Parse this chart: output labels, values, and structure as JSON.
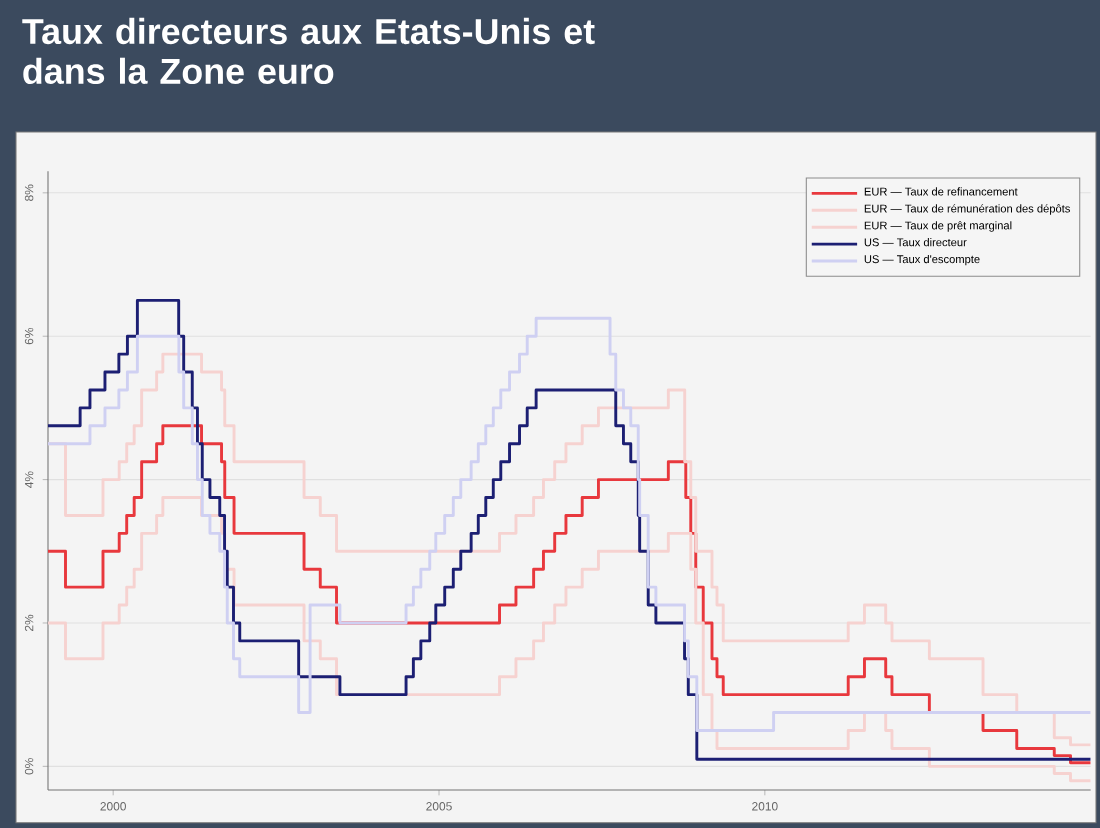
{
  "chart_data": {
    "type": "step",
    "title": "Taux directeurs aux Etats-Unis et dans la Zone euro",
    "xlim": [
      "1999-01-01",
      "2015-01-01"
    ],
    "xticks": [
      "2000",
      "2005",
      "2010"
    ],
    "ylim": [
      -0.33,
      8.3
    ],
    "yticks": [
      {
        "value": 0,
        "label": "0%"
      },
      {
        "value": 2,
        "label": "2%"
      },
      {
        "value": 4,
        "label": "4%"
      },
      {
        "value": 6,
        "label": "6%"
      },
      {
        "value": 8,
        "label": "8%"
      }
    ],
    "grid": "y",
    "legend": "top right",
    "series": [
      {
        "name": "EUR — Taux de refinancement",
        "color": "#e8383d",
        "x": [
          "1999-01-01",
          "1999-04-09",
          "1999-11-05",
          "2000-02-04",
          "2000-03-17",
          "2000-04-28",
          "2000-06-09",
          "2000-09-01",
          "2000-10-06",
          "2001-05-11",
          "2001-08-31",
          "2001-09-18",
          "2001-11-09",
          "2002-12-06",
          "2003-03-07",
          "2003-06-06",
          "2005-12-06",
          "2006-03-08",
          "2006-06-15",
          "2006-08-09",
          "2006-10-11",
          "2006-12-13",
          "2007-03-14",
          "2007-06-13",
          "2008-07-09",
          "2008-10-15",
          "2008-11-12",
          "2008-12-10",
          "2009-01-21",
          "2009-03-11",
          "2009-04-08",
          "2009-05-13",
          "2011-04-13",
          "2011-07-13",
          "2011-11-09",
          "2011-12-14",
          "2012-07-11",
          "2013-05-08",
          "2013-11-13",
          "2014-06-11",
          "2014-09-10",
          "2015-01-01"
        ],
        "values": [
          3.0,
          2.5,
          3.0,
          3.25,
          3.5,
          3.75,
          4.25,
          4.5,
          4.75,
          4.5,
          4.25,
          3.75,
          3.25,
          2.75,
          2.5,
          2.0,
          2.25,
          2.5,
          2.75,
          3.0,
          3.25,
          3.5,
          3.75,
          4.0,
          4.25,
          3.75,
          3.25,
          2.5,
          2.0,
          1.5,
          1.25,
          1.0,
          1.25,
          1.5,
          1.25,
          1.0,
          0.75,
          0.5,
          0.25,
          0.15,
          0.05,
          0.05
        ]
      },
      {
        "name": "EUR — Taux de rémunération des dépôts",
        "color": "#f6d2d0",
        "x": [
          "1999-01-01",
          "1999-04-09",
          "1999-11-05",
          "2000-02-04",
          "2000-03-17",
          "2000-04-28",
          "2000-06-09",
          "2000-09-01",
          "2000-10-06",
          "2001-05-11",
          "2001-08-31",
          "2001-09-18",
          "2001-11-09",
          "2002-12-06",
          "2003-03-07",
          "2003-06-06",
          "2005-12-06",
          "2006-03-08",
          "2006-06-15",
          "2006-08-09",
          "2006-10-11",
          "2006-12-13",
          "2007-03-14",
          "2007-06-13",
          "2008-07-09",
          "2008-11-12",
          "2008-12-10",
          "2009-01-21",
          "2009-03-11",
          "2009-04-08",
          "2011-04-13",
          "2011-07-13",
          "2011-11-09",
          "2011-12-14",
          "2012-07-11",
          "2014-06-11",
          "2014-09-10",
          "2015-01-01"
        ],
        "values": [
          2.0,
          1.5,
          2.0,
          2.25,
          2.5,
          2.75,
          3.25,
          3.5,
          3.75,
          3.5,
          3.25,
          2.75,
          2.25,
          1.75,
          1.5,
          1.0,
          1.25,
          1.5,
          1.75,
          2.0,
          2.25,
          2.5,
          2.75,
          3.0,
          3.25,
          2.75,
          2.0,
          1.0,
          0.5,
          0.25,
          0.5,
          0.75,
          0.5,
          0.25,
          0.0,
          -0.1,
          -0.2,
          -0.2
        ]
      },
      {
        "name": "EUR — Taux de  prêt marginal",
        "color": "#f6d2d0",
        "x": [
          "1999-01-01",
          "1999-04-09",
          "1999-11-05",
          "2000-02-04",
          "2000-03-17",
          "2000-04-28",
          "2000-06-09",
          "2000-09-01",
          "2000-10-06",
          "2001-05-11",
          "2001-08-31",
          "2001-09-18",
          "2001-11-09",
          "2002-12-06",
          "2003-03-07",
          "2003-06-06",
          "2005-12-06",
          "2006-03-08",
          "2006-06-15",
          "2006-08-09",
          "2006-10-11",
          "2006-12-13",
          "2007-03-14",
          "2007-06-13",
          "2008-07-09",
          "2008-10-09",
          "2008-11-12",
          "2008-12-10",
          "2009-03-11",
          "2009-04-08",
          "2009-05-13",
          "2011-04-13",
          "2011-07-13",
          "2011-11-09",
          "2011-12-14",
          "2012-07-11",
          "2013-05-08",
          "2013-11-13",
          "2014-06-11",
          "2014-09-10",
          "2015-01-01"
        ],
        "values": [
          4.5,
          3.5,
          4.0,
          4.25,
          4.5,
          4.75,
          5.25,
          5.5,
          5.75,
          5.5,
          5.25,
          4.75,
          4.25,
          3.75,
          3.5,
          3.0,
          3.25,
          3.5,
          3.75,
          4.0,
          4.25,
          4.5,
          4.75,
          5.0,
          5.25,
          4.25,
          3.75,
          3.0,
          2.5,
          2.25,
          1.75,
          2.0,
          2.25,
          2.0,
          1.75,
          1.5,
          1.0,
          0.75,
          0.4,
          0.3,
          0.3
        ]
      },
      {
        "name": "US — Taux directeur",
        "color": "#1c1f73",
        "x": [
          "1999-01-01",
          "1999-06-30",
          "1999-08-24",
          "1999-11-16",
          "2000-02-02",
          "2000-03-21",
          "2000-05-16",
          "2001-01-03",
          "2001-01-31",
          "2001-03-20",
          "2001-04-18",
          "2001-05-15",
          "2001-06-27",
          "2001-08-21",
          "2001-09-17",
          "2001-10-02",
          "2001-11-06",
          "2001-12-11",
          "2002-11-06",
          "2003-06-25",
          "2004-06-30",
          "2004-08-10",
          "2004-09-21",
          "2004-11-10",
          "2004-12-14",
          "2005-02-02",
          "2005-03-22",
          "2005-05-03",
          "2005-06-30",
          "2005-08-09",
          "2005-09-20",
          "2005-11-01",
          "2005-12-13",
          "2006-01-31",
          "2006-03-28",
          "2006-05-10",
          "2006-06-29",
          "2007-09-18",
          "2007-10-31",
          "2007-12-11",
          "2008-01-22",
          "2008-01-30",
          "2008-03-18",
          "2008-04-30",
          "2008-10-08",
          "2008-10-29",
          "2008-12-16",
          "2015-01-01"
        ],
        "values": [
          4.75,
          5.0,
          5.25,
          5.5,
          5.75,
          6.0,
          6.5,
          6.0,
          5.5,
          5.0,
          4.5,
          4.0,
          3.75,
          3.5,
          3.0,
          2.5,
          2.0,
          1.75,
          1.25,
          1.0,
          1.25,
          1.5,
          1.75,
          2.0,
          2.25,
          2.5,
          2.75,
          3.0,
          3.25,
          3.5,
          3.75,
          4.0,
          4.25,
          4.5,
          4.75,
          5.0,
          5.25,
          4.75,
          4.5,
          4.25,
          3.5,
          3.0,
          2.25,
          2.0,
          1.5,
          1.0,
          0.1,
          0.1
        ]
      },
      {
        "name": "US — Taux d'escompte",
        "color": "#cfd0f2",
        "x": [
          "1999-01-01",
          "1999-08-24",
          "1999-11-16",
          "2000-02-02",
          "2000-03-21",
          "2000-05-16",
          "2001-01-04",
          "2001-01-31",
          "2001-03-20",
          "2001-04-18",
          "2001-05-15",
          "2001-06-27",
          "2001-08-21",
          "2001-09-17",
          "2001-10-02",
          "2001-11-06",
          "2001-12-11",
          "2002-11-06",
          "2003-01-09",
          "2003-06-25",
          "2004-06-30",
          "2004-08-10",
          "2004-09-21",
          "2004-11-10",
          "2004-12-14",
          "2005-02-02",
          "2005-03-22",
          "2005-05-03",
          "2005-06-30",
          "2005-08-09",
          "2005-09-20",
          "2005-11-01",
          "2005-12-13",
          "2006-01-31",
          "2006-03-28",
          "2006-05-10",
          "2006-06-29",
          "2007-08-17",
          "2007-09-18",
          "2007-10-31",
          "2007-12-11",
          "2008-01-22",
          "2008-01-30",
          "2008-03-18",
          "2008-04-30",
          "2008-10-08",
          "2008-10-29",
          "2008-12-16",
          "2010-02-19",
          "2015-01-01"
        ],
        "values": [
          4.5,
          4.75,
          5.0,
          5.25,
          5.5,
          6.0,
          5.5,
          5.0,
          4.5,
          4.0,
          3.5,
          3.25,
          3.0,
          2.5,
          2.0,
          1.5,
          1.25,
          0.75,
          2.25,
          2.0,
          2.25,
          2.5,
          2.75,
          3.0,
          3.25,
          3.5,
          3.75,
          4.0,
          4.25,
          4.5,
          4.75,
          5.0,
          5.25,
          5.5,
          5.75,
          6.0,
          6.25,
          5.75,
          5.25,
          5.0,
          4.75,
          4.0,
          3.5,
          2.5,
          2.25,
          1.75,
          1.25,
          0.5,
          0.75,
          0.75
        ]
      }
    ]
  }
}
